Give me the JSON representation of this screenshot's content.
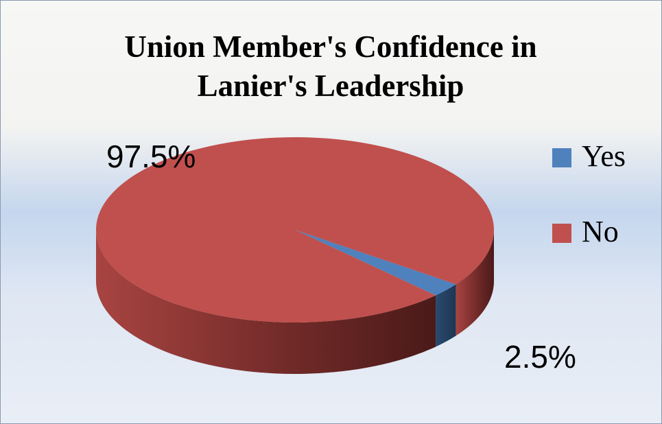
{
  "chart_data": {
    "type": "pie",
    "title": "Union Member's Confidence in Lanier's Leadership",
    "categories": [
      "Yes",
      "No"
    ],
    "values": [
      2.5,
      97.5
    ],
    "value_labels": [
      "2.5%",
      "97.5%"
    ],
    "colors": [
      "#4f81bd",
      "#c0504d"
    ],
    "legend": "right"
  }
}
